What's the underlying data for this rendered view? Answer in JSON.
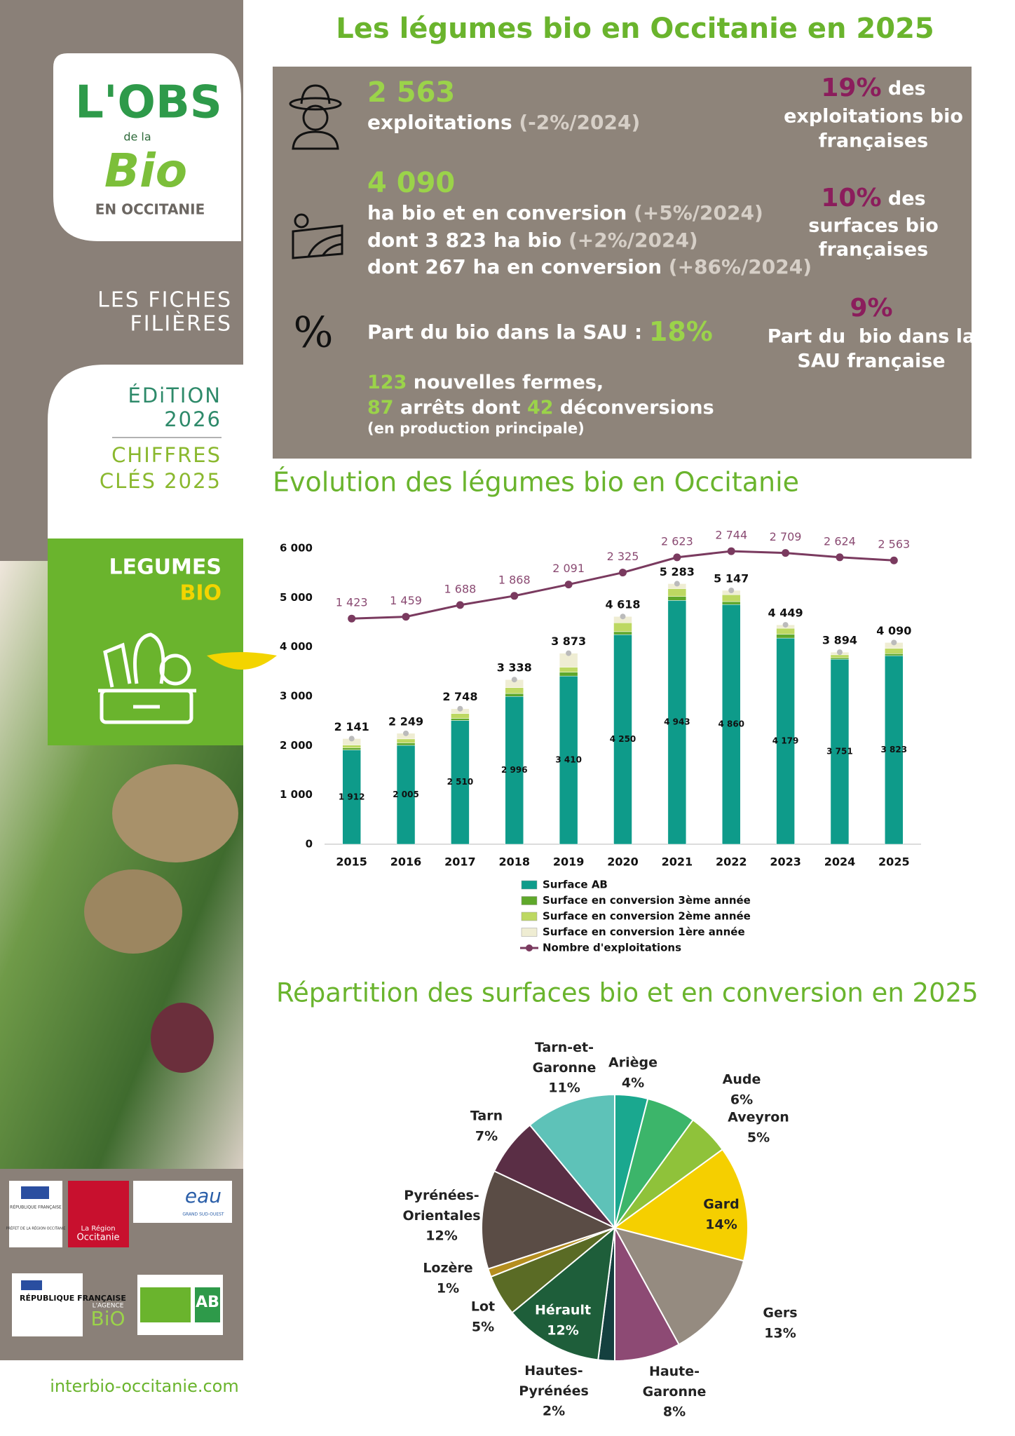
{
  "sidebar": {
    "logo": [
      "L'OBS",
      "de la",
      "Bio",
      "EN OCCITANIE"
    ],
    "series_title": [
      "LES FICHES",
      "FILIÈRES"
    ],
    "edition": [
      "ÉDiTION",
      "2026"
    ],
    "key_figures": [
      "CHIFFRES",
      "CLÉS 2025"
    ],
    "sector": [
      "LEGUMES",
      "BIO"
    ],
    "partners": [
      "RÉPUBLIQUE FRANÇAISE",
      "PRÉFET DE LA RÉGION OCCITANIE",
      "La Région",
      "Occitanie",
      "eau",
      "GRAND SUD-OUEST",
      "RÉPUBLIQUE FRANÇAISE",
      "L'AGENCE",
      "BiO",
      "AB"
    ],
    "website": "interbio-occitanie.com"
  },
  "header": {
    "title": "Les légumes bio en Occitanie en 2025"
  },
  "stats": {
    "farms": {
      "count": "2 563",
      "label": "exploitations ",
      "change": "(-2%/2024)",
      "share": "19%",
      "share_word": " des",
      "share_rest": [
        "exploitations bio",
        "françaises"
      ]
    },
    "area": {
      "total": "4 090",
      "lines": [
        [
          "ha bio et en conversion ",
          "(+5%/2024)"
        ],
        [
          "dont 3 823 ha bio ",
          "(+2%/2024)"
        ],
        [
          "dont 267 ha en conversion ",
          "(+86%/2024)"
        ]
      ],
      "share": "10%",
      "share_word": " des",
      "share_rest": [
        "surfaces bio",
        "françaises"
      ]
    },
    "sau": {
      "symbol": "%",
      "label": "Part du bio dans la SAU : ",
      "value": "18%",
      "national": "9%",
      "national_text": [
        "Part du  bio dans la",
        "SAU française"
      ]
    },
    "movements": {
      "new_farms": "123",
      "new_farms_text": " nouvelles fermes,",
      "stops": "87",
      "stops_text": " arrêts dont ",
      "deconversions": "42",
      "deconversions_text": " déconversions",
      "note": "(en production principale)"
    }
  },
  "chart_data": [
    {
      "type": "bar",
      "stacked": true,
      "title": "Évolution des légumes bio en Occitanie",
      "categories": [
        "2015",
        "2016",
        "2017",
        "2018",
        "2019",
        "2020",
        "2021",
        "2022",
        "2023",
        "2024",
        "2025"
      ],
      "series": [
        {
          "name": "Surface AB",
          "color": "#0e9b8a",
          "values": [
            1912,
            2005,
            2510,
            2996,
            3410,
            4250,
            4943,
            4860,
            4179,
            3751,
            3823
          ],
          "value_labels": [
            "1 912",
            "2 005",
            "2 510",
            "2 996",
            "3 410",
            "4 250",
            "4 943",
            "4 860",
            "4 179",
            "3 751",
            "3 823"
          ]
        },
        {
          "name": "Surface en conversion 3ème année",
          "color": "#5fa82b",
          "values": [
            40,
            50,
            40,
            60,
            80,
            60,
            80,
            60,
            80,
            30,
            40
          ]
        },
        {
          "name": "Surface en conversion 2ème année",
          "color": "#bdd862",
          "values": [
            60,
            80,
            100,
            120,
            100,
            180,
            160,
            140,
            120,
            60,
            110
          ]
        },
        {
          "name": "Surface en conversion 1ère année",
          "color": "#efedd3",
          "values": [
            129,
            114,
            98,
            162,
            283,
            128,
            100,
            87,
            70,
            53,
            117
          ]
        },
        {
          "name": "Nombre d'exploitations",
          "type": "line",
          "axis": "y2",
          "color": "#7a3a5f",
          "values": [
            1423,
            1459,
            1688,
            1868,
            2091,
            2325,
            2623,
            2744,
            2709,
            2624,
            2563
          ],
          "value_labels": [
            "1 423",
            "1 459",
            "1 688",
            "1 868",
            "2 091",
            "2 325",
            "2 623",
            "2 744",
            "2 709",
            "2 624",
            "2 563"
          ]
        }
      ],
      "totals": [
        2141,
        2249,
        2748,
        3338,
        3873,
        4618,
        5283,
        5147,
        4449,
        3894,
        4090
      ],
      "total_labels": [
        "2 141",
        "2 249",
        "2 748",
        "3 338",
        "3 873",
        "4 618",
        "5 283",
        "5 147",
        "4 449",
        "3 894",
        "4 090"
      ],
      "ylim": [
        0,
        6000
      ],
      "yticks": [
        0,
        {
          "value": 1000,
          "label": "1 000"
        },
        {
          "value": 2000,
          "label": "2 000"
        },
        {
          "value": 3000,
          "label": "3 000"
        },
        {
          "value": 4000,
          "label": "4 000"
        },
        {
          "value": 5000,
          "label": "5 000"
        },
        {
          "value": 6000,
          "label": "6 000"
        }
      ],
      "y2lim": [
        -3000,
        2800
      ],
      "grid": false,
      "legend": "bottom"
    },
    {
      "type": "pie",
      "title": "Répartition des surfaces bio et en conversion en 2025",
      "categories": [
        "Ariège",
        "Aude",
        "Aveyron",
        "Gard",
        "Gers",
        "Haute-Garonne",
        "Hautes-Pyrénées",
        "Hérault",
        "Lot",
        "Lozère",
        "Pyrénées-Orientales",
        "Tarn",
        "Tarn-et-Garonne"
      ],
      "values": [
        4,
        6,
        5,
        14,
        13,
        8,
        2,
        12,
        5,
        1,
        12,
        7,
        11
      ],
      "value_labels": [
        "4%",
        "6%",
        "5%",
        "14%",
        "13%",
        "8%",
        "2%",
        "12%",
        "5%",
        "1%",
        "12%",
        "7%",
        "11%"
      ],
      "colors": [
        "#1aa88f",
        "#3cb56a",
        "#8fc23a",
        "#f5cf00",
        "#958b80",
        "#8d4a74",
        "#14403f",
        "#1e5e3a",
        "#5a6b25",
        "#b58e1f",
        "#5a4c45",
        "#5a2e45",
        "#5ec2b8"
      ]
    }
  ]
}
